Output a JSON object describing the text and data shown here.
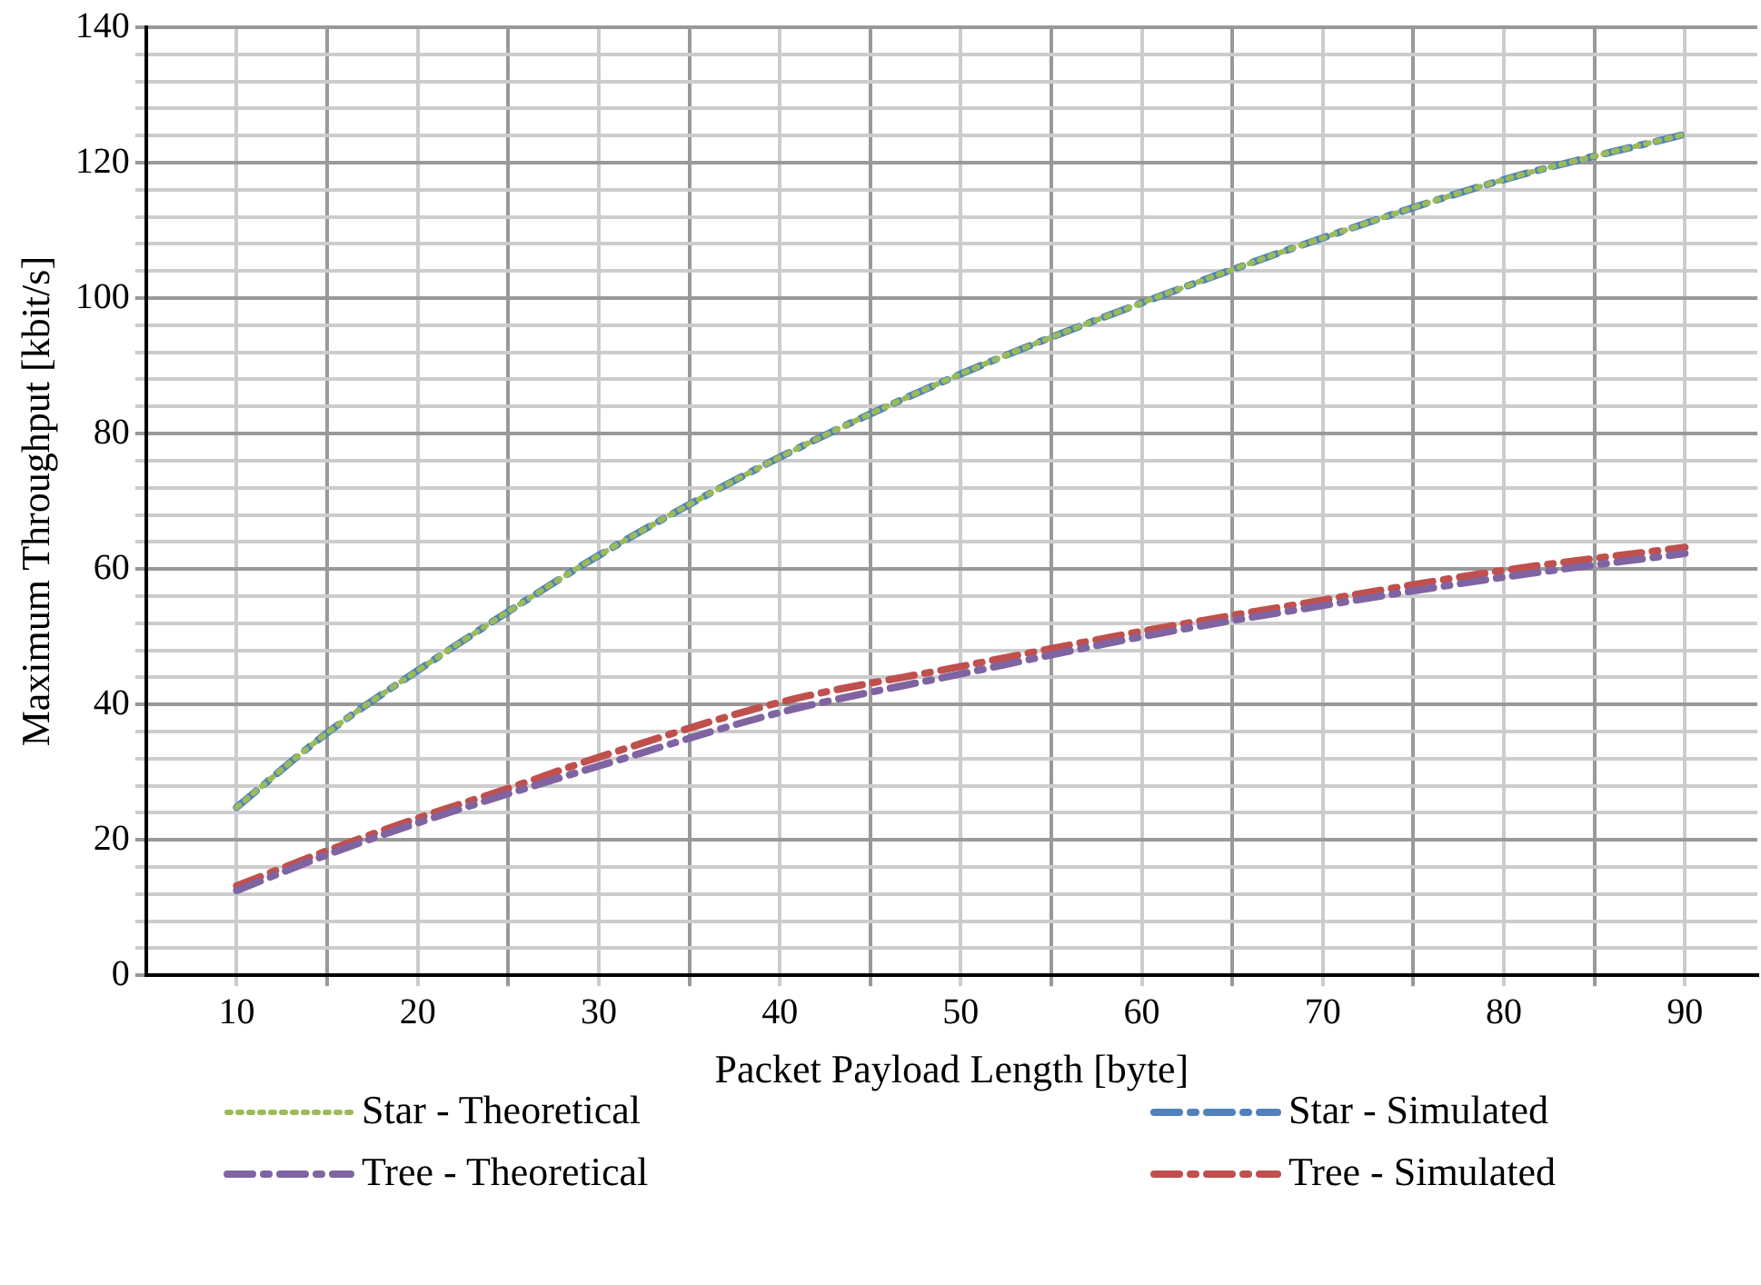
{
  "chart_data": {
    "type": "line",
    "xlabel": "Packet Payload Length [byte]",
    "ylabel": "Maximum Throughput [kbit/s]",
    "x": [
      10,
      15,
      20,
      25,
      30,
      40,
      50,
      60,
      70,
      80,
      90
    ],
    "series": [
      {
        "name": "Star - Theoretical",
        "color": "#9bbb59",
        "line_style": "dotted",
        "values": [
          24.8,
          35.8,
          45,
          53.7,
          62,
          76.5,
          88.8,
          99.3,
          108.9,
          117.5,
          124.2
        ]
      },
      {
        "name": "Star - Simulated",
        "color": "#4f81bd",
        "line_style": "dashed",
        "values": [
          24.8,
          35.8,
          45,
          53.7,
          62,
          76.5,
          88.8,
          99.3,
          108.9,
          117.5,
          124.2
        ]
      },
      {
        "name": "Tree - Theoretical",
        "color": "#8064a2",
        "line_style": "dashed",
        "values": [
          12.5,
          17.8,
          22.5,
          26.8,
          30.9,
          38.8,
          44.5,
          50,
          54.6,
          58.8,
          62.3
        ]
      },
      {
        "name": "Tree - Simulated",
        "color": "#c0504d",
        "line_style": "dashed",
        "values": [
          13.2,
          18.4,
          23.2,
          27.6,
          32.2,
          40.3,
          45.6,
          50.8,
          55.4,
          59.8,
          63.2
        ]
      }
    ],
    "xlim": [
      5,
      94
    ],
    "xticks": [
      10,
      {
        "value": 15,
        "label": null
      },
      20,
      {
        "value": 25,
        "label": null
      },
      30,
      {
        "value": 35,
        "label": null
      },
      40,
      {
        "value": 45,
        "label": null
      },
      50,
      {
        "value": 55,
        "label": null
      },
      60,
      {
        "value": 65,
        "label": null
      },
      70,
      {
        "value": 75,
        "label": null
      },
      80,
      {
        "value": 85,
        "label": null
      },
      90
    ],
    "ylim": [
      0,
      140
    ],
    "yticks": [
      0,
      {
        "value": 4,
        "label": null
      },
      {
        "value": 8,
        "label": null
      },
      {
        "value": 12,
        "label": null
      },
      {
        "value": 16,
        "label": null
      },
      20,
      {
        "value": 24,
        "label": null
      },
      {
        "value": 28,
        "label": null
      },
      {
        "value": 32,
        "label": null
      },
      {
        "value": 36,
        "label": null
      },
      40,
      {
        "value": 44,
        "label": null
      },
      {
        "value": 48,
        "label": null
      },
      {
        "value": 52,
        "label": null
      },
      {
        "value": 56,
        "label": null
      },
      60,
      {
        "value": 64,
        "label": null
      },
      {
        "value": 68,
        "label": null
      },
      {
        "value": 72,
        "label": null
      },
      {
        "value": 76,
        "label": null
      },
      80,
      {
        "value": 84,
        "label": null
      },
      {
        "value": 88,
        "label": null
      },
      {
        "value": 92,
        "label": null
      },
      {
        "value": 96,
        "label": null
      },
      100,
      {
        "value": 104,
        "label": null
      },
      {
        "value": 108,
        "label": null
      },
      {
        "value": 112,
        "label": null
      },
      {
        "value": 116,
        "label": null
      },
      120,
      {
        "value": 124,
        "label": null
      },
      {
        "value": 128,
        "label": null
      },
      {
        "value": 132,
        "label": null
      },
      {
        "value": 136,
        "label": null
      },
      140
    ],
    "grid": true,
    "legend": "bottom",
    "marker": "none"
  }
}
